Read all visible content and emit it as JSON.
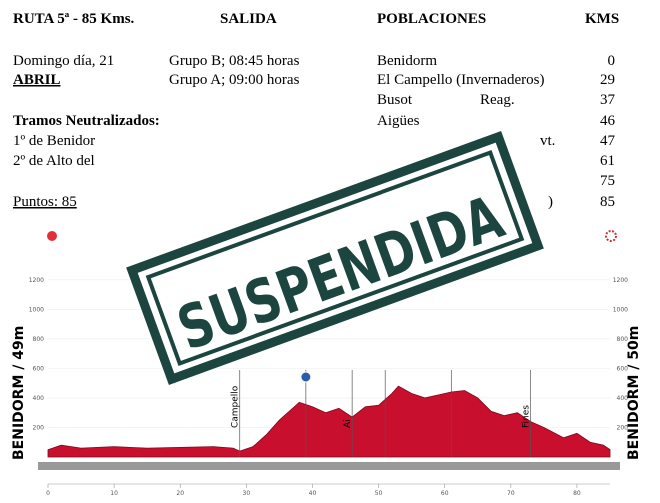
{
  "header": {
    "route": "RUTA 5ª - 85 Kms.",
    "start": "SALIDA",
    "towns": "POBLACIONES",
    "kms": "KMS"
  },
  "info": {
    "day": "Domingo día, 21",
    "month": "ABRIL",
    "group_b": "Grupo B; 08:45 horas",
    "group_a": "Grupo A; 09:00 horas",
    "neutral_title": "Tramos Neutralizados:",
    "neutral": [
      "1º de Benidor",
      "2º de Alto del"
    ],
    "points": "Puntos: 85"
  },
  "itinerary": [
    {
      "town": "Benidorm",
      "km": 0
    },
    {
      "town": "El Campello (Invernaderos)",
      "km": 29
    },
    {
      "town": "Busot",
      "note": "Reag.",
      "km": 37
    },
    {
      "town": "Aigües",
      "km": 46
    },
    {
      "town": "vt.",
      "km": 47
    },
    {
      "km": 61
    },
    {
      "km": 75
    },
    {
      "town": ")",
      "km": 85
    }
  ],
  "stamp": "SUSPENDIDA",
  "profile": {
    "start_label": "BENIDORM / 49m",
    "finish_label": "BENIDORM / 50m",
    "xlim": [
      0,
      85
    ],
    "xticks": [
      0,
      10,
      20,
      30,
      40,
      50,
      60,
      70,
      80
    ],
    "ylim": [
      0,
      1300
    ],
    "yticks": [
      200,
      400,
      600,
      800,
      1000,
      1200
    ],
    "km": [
      0,
      2,
      5,
      10,
      15,
      20,
      25,
      28,
      29,
      31,
      33,
      35,
      37,
      38,
      40,
      42,
      44,
      46,
      48,
      50,
      52,
      53,
      55,
      57,
      59,
      61,
      63,
      65,
      67,
      69,
      71,
      73,
      75,
      78,
      80,
      82,
      84,
      85
    ],
    "elevation": [
      49,
      80,
      60,
      70,
      60,
      65,
      70,
      60,
      40,
      70,
      150,
      250,
      330,
      370,
      340,
      300,
      330,
      270,
      340,
      350,
      430,
      480,
      430,
      400,
      420,
      440,
      450,
      400,
      310,
      280,
      300,
      240,
      200,
      130,
      160,
      100,
      80,
      50
    ],
    "markers": [
      {
        "km": 29,
        "label": "Campello"
      },
      {
        "km": 39
      },
      {
        "km": 46,
        "label": "Ai"
      },
      {
        "km": 51
      },
      {
        "km": 61
      },
      {
        "km": 73,
        "label": "Fines"
      }
    ]
  }
}
